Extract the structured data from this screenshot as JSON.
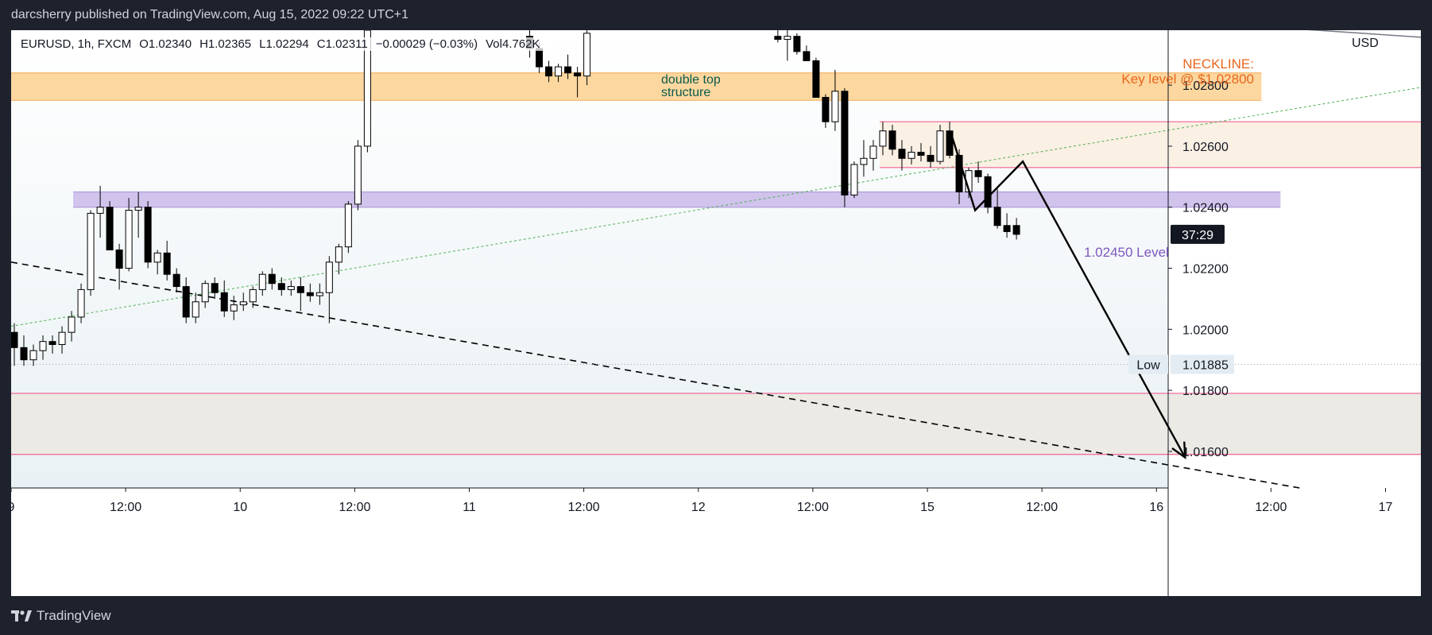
{
  "header": {
    "text": "darcsherry published on TradingView.com, Aug 15, 2022 09:22 UTC+1"
  },
  "symbol": {
    "name": "EURUSD, 1h, FXCM",
    "open": "O1.02340",
    "high": "H1.02365",
    "low": "L1.02294",
    "close": "C1.02311",
    "change": "−0.00029 (−0.03%)",
    "volume": "Vol4.762K"
  },
  "footer": {
    "brand": "TradingView",
    "icon": "tradingview-logo-icon"
  },
  "annotations": {
    "neckline_title": "NECKLINE:",
    "neckline_sub": "Key level @ $1.02800",
    "double_top_1": "double top",
    "double_top_2": "structure",
    "level_label": "1.02450 Level"
  },
  "colors": {
    "up_candle": "#ffffff",
    "down_candle": "#000000",
    "neckline_zone": "#fcd79f",
    "level_zone": "#d0c3ec",
    "resistance_zone": "#fbf0e4",
    "target_zone": "#ebeae5",
    "zone_border": "#f06292",
    "trendline_dotted": "#4caf50",
    "price_tag_bg": "#131722",
    "neckline_text": "#e8671c",
    "level_text": "#7e57c2"
  },
  "chart_data": {
    "type": "candlestick",
    "symbol": "EURUSD",
    "timeframe": "1h",
    "price_axis": {
      "unit": "USD",
      "ticks": [
        "1.02800",
        "1.02600",
        "1.02400",
        "1.02200",
        "1.02000",
        "1.01800",
        "1.01600"
      ],
      "range": [
        1.0148,
        1.0298
      ]
    },
    "time_axis": {
      "ticks": [
        {
          "label": "9",
          "hour": 0
        },
        {
          "label": "12:00",
          "hour": 12
        },
        {
          "label": "10",
          "hour": 24
        },
        {
          "label": "12:00",
          "hour": 36
        },
        {
          "label": "11",
          "hour": 48
        },
        {
          "label": "12:00",
          "hour": 60
        },
        {
          "label": "12",
          "hour": 72
        },
        {
          "label": "12:00",
          "hour": 84
        },
        {
          "label": "15",
          "hour": 96
        },
        {
          "label": "12:00",
          "hour": 108
        },
        {
          "label": "16",
          "hour": 120
        },
        {
          "label": "12:00",
          "hour": 132
        },
        {
          "label": "17",
          "hour": 144
        }
      ]
    },
    "countdown": "37:29",
    "low_marker": {
      "label": "Low",
      "value": "1.01885"
    },
    "zones": [
      {
        "name": "neckline",
        "from_hour": 0,
        "to_hour": 131,
        "low": 1.0275,
        "high": 1.0284
      },
      {
        "name": "level",
        "from_hour": 6.5,
        "to_hour": 133,
        "low": 1.024,
        "high": 1.0245
      },
      {
        "name": "resistance",
        "from_hour": 91,
        "to_hour": 151,
        "low": 1.0253,
        "high": 1.0268
      },
      {
        "name": "target",
        "from_hour": 0,
        "to_hour": 151,
        "low": 1.0159,
        "high": 1.0179
      }
    ],
    "candles": [
      {
        "h": 0,
        "o": 1.0199,
        "hi": 1.0202,
        "l": 1.0188,
        "c": 1.0194
      },
      {
        "h": 1,
        "o": 1.0194,
        "hi": 1.0198,
        "l": 1.0188,
        "c": 1.019
      },
      {
        "h": 2,
        "o": 1.019,
        "hi": 1.0195,
        "l": 1.0188,
        "c": 1.0193
      },
      {
        "h": 3,
        "o": 1.0193,
        "hi": 1.0198,
        "l": 1.019,
        "c": 1.0196
      },
      {
        "h": 4,
        "o": 1.0196,
        "hi": 1.0198,
        "l": 1.0192,
        "c": 1.0195
      },
      {
        "h": 5,
        "o": 1.0195,
        "hi": 1.0201,
        "l": 1.0192,
        "c": 1.0199
      },
      {
        "h": 6,
        "o": 1.0199,
        "hi": 1.0206,
        "l": 1.0196,
        "c": 1.0204
      },
      {
        "h": 7,
        "o": 1.0204,
        "hi": 1.0215,
        "l": 1.0202,
        "c": 1.0213
      },
      {
        "h": 8,
        "o": 1.0213,
        "hi": 1.0239,
        "l": 1.0211,
        "c": 1.0238
      },
      {
        "h": 9,
        "o": 1.0238,
        "hi": 1.0247,
        "l": 1.023,
        "c": 1.024
      },
      {
        "h": 10,
        "o": 1.024,
        "hi": 1.0242,
        "l": 1.0226,
        "c": 1.0226
      },
      {
        "h": 11,
        "o": 1.0226,
        "hi": 1.0228,
        "l": 1.0213,
        "c": 1.022
      },
      {
        "h": 12,
        "o": 1.022,
        "hi": 1.0243,
        "l": 1.0219,
        "c": 1.0239
      },
      {
        "h": 13,
        "o": 1.0239,
        "hi": 1.0245,
        "l": 1.023,
        "c": 1.024
      },
      {
        "h": 14,
        "o": 1.024,
        "hi": 1.0242,
        "l": 1.022,
        "c": 1.0222
      },
      {
        "h": 15,
        "o": 1.0222,
        "hi": 1.0226,
        "l": 1.0218,
        "c": 1.0225
      },
      {
        "h": 16,
        "o": 1.0225,
        "hi": 1.0229,
        "l": 1.0216,
        "c": 1.0218
      },
      {
        "h": 17,
        "o": 1.0218,
        "hi": 1.022,
        "l": 1.0212,
        "c": 1.0214
      },
      {
        "h": 18,
        "o": 1.0214,
        "hi": 1.0217,
        "l": 1.0202,
        "c": 1.0204
      },
      {
        "h": 19,
        "o": 1.0204,
        "hi": 1.0212,
        "l": 1.0202,
        "c": 1.0209
      },
      {
        "h": 20,
        "o": 1.0209,
        "hi": 1.0216,
        "l": 1.0207,
        "c": 1.0215
      },
      {
        "h": 21,
        "o": 1.0215,
        "hi": 1.0217,
        "l": 1.021,
        "c": 1.0212
      },
      {
        "h": 22,
        "o": 1.0212,
        "hi": 1.0216,
        "l": 1.0204,
        "c": 1.0206
      },
      {
        "h": 23,
        "o": 1.0206,
        "hi": 1.0211,
        "l": 1.0203,
        "c": 1.0208
      },
      {
        "h": 24,
        "o": 1.0208,
        "hi": 1.0212,
        "l": 1.0206,
        "c": 1.0209
      },
      {
        "h": 25,
        "o": 1.0209,
        "hi": 1.0214,
        "l": 1.0207,
        "c": 1.0213
      },
      {
        "h": 26,
        "o": 1.0213,
        "hi": 1.0219,
        "l": 1.0211,
        "c": 1.0218
      },
      {
        "h": 27,
        "o": 1.0218,
        "hi": 1.022,
        "l": 1.0213,
        "c": 1.0215
      },
      {
        "h": 28,
        "o": 1.0215,
        "hi": 1.0217,
        "l": 1.0211,
        "c": 1.0213
      },
      {
        "h": 29,
        "o": 1.0213,
        "hi": 1.0216,
        "l": 1.0211,
        "c": 1.0214
      },
      {
        "h": 30,
        "o": 1.0214,
        "hi": 1.0217,
        "l": 1.0206,
        "c": 1.0212
      },
      {
        "h": 31,
        "o": 1.0212,
        "hi": 1.0215,
        "l": 1.0209,
        "c": 1.0211
      },
      {
        "h": 32,
        "o": 1.0211,
        "hi": 1.0215,
        "l": 1.0208,
        "c": 1.0212
      },
      {
        "h": 33,
        "o": 1.0212,
        "hi": 1.0224,
        "l": 1.0202,
        "c": 1.0222
      },
      {
        "h": 34,
        "o": 1.0222,
        "hi": 1.0228,
        "l": 1.0218,
        "c": 1.0227
      },
      {
        "h": 35,
        "o": 1.0227,
        "hi": 1.0242,
        "l": 1.0225,
        "c": 1.0241
      },
      {
        "h": 36,
        "o": 1.0241,
        "hi": 1.0262,
        "l": 1.0239,
        "c": 1.026
      },
      {
        "h": 37,
        "o": 1.026,
        "hi": 1.0299,
        "l": 1.0258,
        "c": 1.0298
      },
      {
        "h": 54,
        "o": 1.0296,
        "hi": 1.0298,
        "l": 1.0289,
        "c": 1.0292
      },
      {
        "h": 55,
        "o": 1.0292,
        "hi": 1.0294,
        "l": 1.0284,
        "c": 1.0286
      },
      {
        "h": 56,
        "o": 1.0286,
        "hi": 1.0288,
        "l": 1.0281,
        "c": 1.0283
      },
      {
        "h": 57,
        "o": 1.0283,
        "hi": 1.0287,
        "l": 1.0281,
        "c": 1.0286
      },
      {
        "h": 58,
        "o": 1.0286,
        "hi": 1.029,
        "l": 1.0282,
        "c": 1.0284
      },
      {
        "h": 59,
        "o": 1.0284,
        "hi": 1.0286,
        "l": 1.0276,
        "c": 1.0283
      },
      {
        "h": 60,
        "o": 1.0283,
        "hi": 1.0299,
        "l": 1.028,
        "c": 1.0297
      },
      {
        "h": 80,
        "o": 1.0296,
        "hi": 1.0298,
        "l": 1.0294,
        "c": 1.0295
      },
      {
        "h": 81,
        "o": 1.0295,
        "hi": 1.0298,
        "l": 1.0288,
        "c": 1.0296
      },
      {
        "h": 82,
        "o": 1.0296,
        "hi": 1.0297,
        "l": 1.029,
        "c": 1.0291
      },
      {
        "h": 83,
        "o": 1.0291,
        "hi": 1.0293,
        "l": 1.0288,
        "c": 1.0288
      },
      {
        "h": 84,
        "o": 1.0288,
        "hi": 1.0289,
        "l": 1.0276,
        "c": 1.0276
      },
      {
        "h": 85,
        "o": 1.0276,
        "hi": 1.0277,
        "l": 1.0266,
        "c": 1.0268
      },
      {
        "h": 86,
        "o": 1.0268,
        "hi": 1.0285,
        "l": 1.0265,
        "c": 1.0278
      },
      {
        "h": 87,
        "o": 1.0278,
        "hi": 1.0279,
        "l": 1.024,
        "c": 1.0244
      },
      {
        "h": 88,
        "o": 1.0244,
        "hi": 1.0255,
        "l": 1.0243,
        "c": 1.0254
      },
      {
        "h": 89,
        "o": 1.0254,
        "hi": 1.0262,
        "l": 1.025,
        "c": 1.0256
      },
      {
        "h": 90,
        "o": 1.0256,
        "hi": 1.0262,
        "l": 1.0252,
        "c": 1.026
      },
      {
        "h": 91,
        "o": 1.026,
        "hi": 1.0268,
        "l": 1.0257,
        "c": 1.0265
      },
      {
        "h": 92,
        "o": 1.0265,
        "hi": 1.0267,
        "l": 1.0257,
        "c": 1.0259
      },
      {
        "h": 93,
        "o": 1.0259,
        "hi": 1.0262,
        "l": 1.0252,
        "c": 1.0256
      },
      {
        "h": 94,
        "o": 1.0256,
        "hi": 1.026,
        "l": 1.0254,
        "c": 1.0258
      },
      {
        "h": 95,
        "o": 1.0258,
        "hi": 1.0261,
        "l": 1.0255,
        "c": 1.0257
      },
      {
        "h": 96,
        "o": 1.0257,
        "hi": 1.026,
        "l": 1.0253,
        "c": 1.0255
      },
      {
        "h": 97,
        "o": 1.0255,
        "hi": 1.0267,
        "l": 1.0254,
        "c": 1.0265
      },
      {
        "h": 98,
        "o": 1.0265,
        "hi": 1.0268,
        "l": 1.0256,
        "c": 1.0257
      },
      {
        "h": 99,
        "o": 1.0257,
        "hi": 1.0259,
        "l": 1.0241,
        "c": 1.0245
      },
      {
        "h": 100,
        "o": 1.0245,
        "hi": 1.0253,
        "l": 1.0243,
        "c": 1.0252
      },
      {
        "h": 101,
        "o": 1.0252,
        "hi": 1.0255,
        "l": 1.0248,
        "c": 1.025
      },
      {
        "h": 102,
        "o": 1.025,
        "hi": 1.0251,
        "l": 1.0238,
        "c": 1.024
      },
      {
        "h": 103,
        "o": 1.024,
        "hi": 1.0246,
        "l": 1.0233,
        "c": 1.0234
      },
      {
        "h": 104,
        "o": 1.0234,
        "hi": 1.0238,
        "l": 1.023,
        "c": 1.0232
      },
      {
        "h": 105,
        "o": 1.0234,
        "hi": 1.02365,
        "l": 1.02294,
        "c": 1.02311
      }
    ],
    "lines": [
      {
        "name": "rising-trend-dotted",
        "style": "dotted",
        "points": [
          [
            0,
            1.0201
          ],
          [
            151,
            1.0281
          ]
        ]
      },
      {
        "name": "falling-trend-dashed",
        "style": "dashed",
        "points": [
          [
            0,
            1.0222
          ],
          [
            135,
            1.0148
          ]
        ]
      },
      {
        "name": "upper-trend-grey",
        "style": "solid",
        "points": [
          [
            132,
            1.0299
          ],
          [
            151,
            1.0295
          ]
        ]
      },
      {
        "name": "low-dotted",
        "style": "dotted",
        "points": [
          [
            0,
            1.01885
          ],
          [
            151,
            1.01885
          ]
        ]
      }
    ],
    "path_projection": {
      "points": [
        [
          98.5,
          1.0264
        ],
        [
          101,
          1.0239
        ],
        [
          106,
          1.0255
        ],
        [
          123,
          1.0158
        ]
      ]
    }
  }
}
